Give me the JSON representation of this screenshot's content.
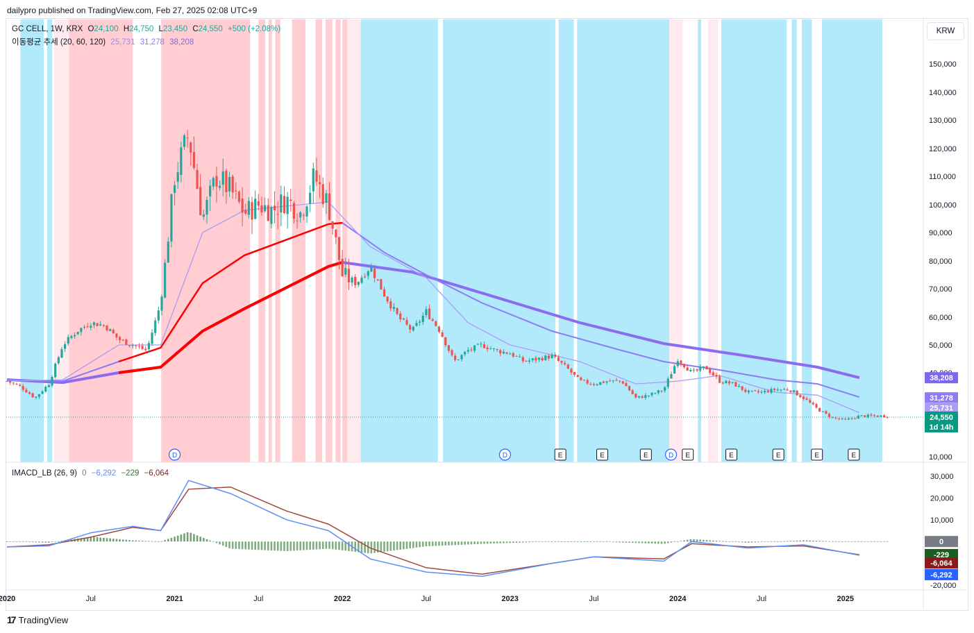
{
  "header": {
    "published": "dailypro published on TradingView.com, Feb 27, 2025 02:08 UTC+9"
  },
  "legend": {
    "symbol": "GC CELL, 1W, KRX",
    "open_label": "O",
    "open": "24,100",
    "high_label": "H",
    "high": "24,750",
    "low_label": "L",
    "low": "23,450",
    "close_label": "C",
    "close": "24,550",
    "change": "+500 (+2.08%)",
    "ma_name": "이동평균 추세 (20, 60, 120)",
    "ma_values": [
      "25,731",
      "31,278",
      "38,208"
    ]
  },
  "macd_legend": {
    "name": "IMACD_LB (26, 9)",
    "values": [
      "0",
      "−6,292",
      "−229",
      "−6,064"
    ]
  },
  "currency": "KRW",
  "brand": "TradingView",
  "colors": {
    "up": "#26a69a",
    "down": "#ef5350",
    "bg_up": "#b3eafb",
    "bg_down": "#ffcdd2",
    "bg_neutral": "#ffebee",
    "ma_fast": "#8b7cf6",
    "ma_slow": "#7b68ee",
    "ma_trend": "#ff0000",
    "macd": "#5b8ff9",
    "signal": "#a0463c",
    "hist": "#5a8f5a"
  },
  "chart_data": [
    {
      "type": "candlestick",
      "title": "GC CELL, 1W, KRX",
      "x_ticks": [
        "2020",
        "Jul",
        "2021",
        "Jul",
        "2022",
        "Jul",
        "2023",
        "Jul",
        "2024",
        "Jul",
        "2025"
      ],
      "y_ticks": [
        "10,000",
        "40,000",
        "50,000",
        "60,000",
        "70,000",
        "80,000",
        "90,000",
        "100,000",
        "110,000",
        "120,000",
        "130,000",
        "140,000",
        "150,000"
      ],
      "ylim": [
        10000,
        155000
      ],
      "close_path": [
        [
          "2020-01",
          37000
        ],
        [
          "2020-02",
          35000
        ],
        [
          "2020-03",
          31000
        ],
        [
          "2020-04",
          36000
        ],
        [
          "2020-05",
          50000
        ],
        [
          "2020-06",
          55000
        ],
        [
          "2020-07",
          58000
        ],
        [
          "2020-08",
          57000
        ],
        [
          "2020-09",
          52000
        ],
        [
          "2020-10",
          50000
        ],
        [
          "2020-11",
          48000
        ],
        [
          "2020-12",
          65000
        ],
        [
          "2021-01",
          110000
        ],
        [
          "2021-02",
          125000
        ],
        [
          "2021-03",
          95000
        ],
        [
          "2021-04",
          110000
        ],
        [
          "2021-05",
          105000
        ],
        [
          "2021-06",
          97000
        ],
        [
          "2021-07",
          100000
        ],
        [
          "2021-08",
          98000
        ],
        [
          "2021-09",
          102000
        ],
        [
          "2021-10",
          97000
        ],
        [
          "2021-11",
          110000
        ],
        [
          "2021-12",
          100000
        ],
        [
          "2022-01",
          75000
        ],
        [
          "2022-02",
          72000
        ],
        [
          "2022-03",
          78000
        ],
        [
          "2022-04",
          68000
        ],
        [
          "2022-05",
          60000
        ],
        [
          "2022-06",
          55000
        ],
        [
          "2022-07",
          62000
        ],
        [
          "2022-08",
          55000
        ],
        [
          "2022-09",
          44000
        ],
        [
          "2022-10",
          48000
        ],
        [
          "2022-11",
          50000
        ],
        [
          "2022-12",
          48000
        ],
        [
          "2023-01",
          47000
        ],
        [
          "2023-02",
          44000
        ],
        [
          "2023-03",
          45000
        ],
        [
          "2023-04",
          46000
        ],
        [
          "2023-05",
          42000
        ],
        [
          "2023-06",
          37000
        ],
        [
          "2023-07",
          36000
        ],
        [
          "2023-08",
          37000
        ],
        [
          "2023-09",
          37000
        ],
        [
          "2023-10",
          31000
        ],
        [
          "2023-11",
          32000
        ],
        [
          "2023-12",
          34000
        ],
        [
          "2024-01",
          45000
        ],
        [
          "2024-02",
          40000
        ],
        [
          "2024-03",
          42000
        ],
        [
          "2024-04",
          37000
        ],
        [
          "2024-05",
          36000
        ],
        [
          "2024-06",
          33000
        ],
        [
          "2024-07",
          33000
        ],
        [
          "2024-08",
          34000
        ],
        [
          "2024-09",
          34000
        ],
        [
          "2024-10",
          31000
        ],
        [
          "2024-11",
          27000
        ],
        [
          "2024-12",
          24000
        ],
        [
          "2025-01",
          23000
        ],
        [
          "2025-02",
          24550
        ]
      ],
      "ma_20_path": [
        [
          "2020-01",
          37000
        ],
        [
          "2020-05",
          37500
        ],
        [
          "2020-09",
          50000
        ],
        [
          "2020-12",
          50000
        ],
        [
          "2021-03",
          90000
        ],
        [
          "2021-06",
          98000
        ],
        [
          "2021-12",
          101000
        ],
        [
          "2022-03",
          85000
        ],
        [
          "2022-07",
          74000
        ],
        [
          "2022-10",
          58000
        ],
        [
          "2023-01",
          50000
        ],
        [
          "2023-06",
          44000
        ],
        [
          "2023-10",
          36000
        ],
        [
          "2024-01",
          37000
        ],
        [
          "2024-04",
          39000
        ],
        [
          "2024-08",
          33000
        ],
        [
          "2024-11",
          32000
        ],
        [
          "2025-02",
          25731
        ]
      ],
      "ma_60_path": [
        [
          "2020-01",
          37500
        ],
        [
          "2020-05",
          37000
        ],
        [
          "2020-09",
          44000
        ],
        [
          "2020-12",
          49000
        ],
        [
          "2021-03",
          72000
        ],
        [
          "2021-06",
          82000
        ],
        [
          "2021-12",
          93000
        ],
        [
          "2022-01",
          93500
        ],
        [
          "2022-04",
          83000
        ],
        [
          "2022-07",
          75000
        ],
        [
          "2022-11",
          65000
        ],
        [
          "2023-04",
          55000
        ],
        [
          "2023-09",
          48000
        ],
        [
          "2023-12",
          44000
        ],
        [
          "2024-04",
          41000
        ],
        [
          "2024-08",
          37500
        ],
        [
          "2024-11",
          36000
        ],
        [
          "2025-02",
          31278
        ]
      ],
      "ma_120_path": [
        [
          "2020-01",
          37500
        ],
        [
          "2020-05",
          36500
        ],
        [
          "2020-09",
          40000
        ],
        [
          "2020-12",
          42000
        ],
        [
          "2021-03",
          55000
        ],
        [
          "2021-06",
          63000
        ],
        [
          "2021-12",
          78000
        ],
        [
          "2022-01",
          79500
        ],
        [
          "2022-06",
          76000
        ],
        [
          "2022-12",
          67000
        ],
        [
          "2023-06",
          58000
        ],
        [
          "2023-12",
          50500
        ],
        [
          "2024-06",
          46000
        ],
        [
          "2024-11",
          42000
        ],
        [
          "2025-02",
          38208
        ]
      ],
      "last_price": 24550,
      "price_labels": [
        "38,208",
        "31,278",
        "25,731",
        "24,550"
      ],
      "countdown": "1d 14h",
      "event_markers": [
        "D",
        "D",
        "E",
        "E",
        "E",
        "D",
        "E",
        "E",
        "E",
        "E",
        "E"
      ]
    },
    {
      "type": "line",
      "title": "IMACD_LB (26, 9)",
      "y_ticks": [
        "30,000",
        "20,000",
        "10,000",
        "-20,000"
      ],
      "ylim": [
        -21000,
        31000
      ],
      "series": [
        {
          "name": "",
          "values_path": [
            [
              "2020-01",
              -2500
            ],
            [
              "2020-04",
              -2000
            ],
            [
              "2020-07",
              4000
            ],
            [
              "2020-10",
              7000
            ],
            [
              "2020-12",
              5000
            ],
            [
              "2021-02",
              28000
            ],
            [
              "2021-05",
              22000
            ],
            [
              "2021-09",
              10000
            ],
            [
              "2021-12",
              5000
            ],
            [
              "2022-03",
              -8000
            ],
            [
              "2022-07",
              -14000
            ],
            [
              "2022-11",
              -16000
            ],
            [
              "2023-04",
              -10000
            ],
            [
              "2023-07",
              -7000
            ],
            [
              "2023-12",
              -9000
            ],
            [
              "2024-02",
              0
            ],
            [
              "2024-06",
              -3000
            ],
            [
              "2024-10",
              -1500
            ],
            [
              "2025-02",
              -6292
            ]
          ]
        },
        {
          "name": "",
          "values_path": [
            [
              "2020-01",
              -2500
            ],
            [
              "2020-04",
              -1500
            ],
            [
              "2020-07",
              2000
            ],
            [
              "2020-10",
              6500
            ],
            [
              "2020-12",
              5000
            ],
            [
              "2021-02",
              24000
            ],
            [
              "2021-05",
              25000
            ],
            [
              "2021-09",
              14000
            ],
            [
              "2021-12",
              8000
            ],
            [
              "2022-03",
              -3000
            ],
            [
              "2022-07",
              -12000
            ],
            [
              "2022-11",
              -15000
            ],
            [
              "2023-04",
              -10000
            ],
            [
              "2023-07",
              -7000
            ],
            [
              "2023-12",
              -8000
            ],
            [
              "2024-02",
              -1000
            ],
            [
              "2024-06",
              -2500
            ],
            [
              "2024-10",
              -2000
            ],
            [
              "2025-02",
              -6064
            ]
          ]
        }
      ],
      "price_labels": [
        "0",
        "-229",
        "-6,064",
        "-6,292"
      ]
    }
  ]
}
